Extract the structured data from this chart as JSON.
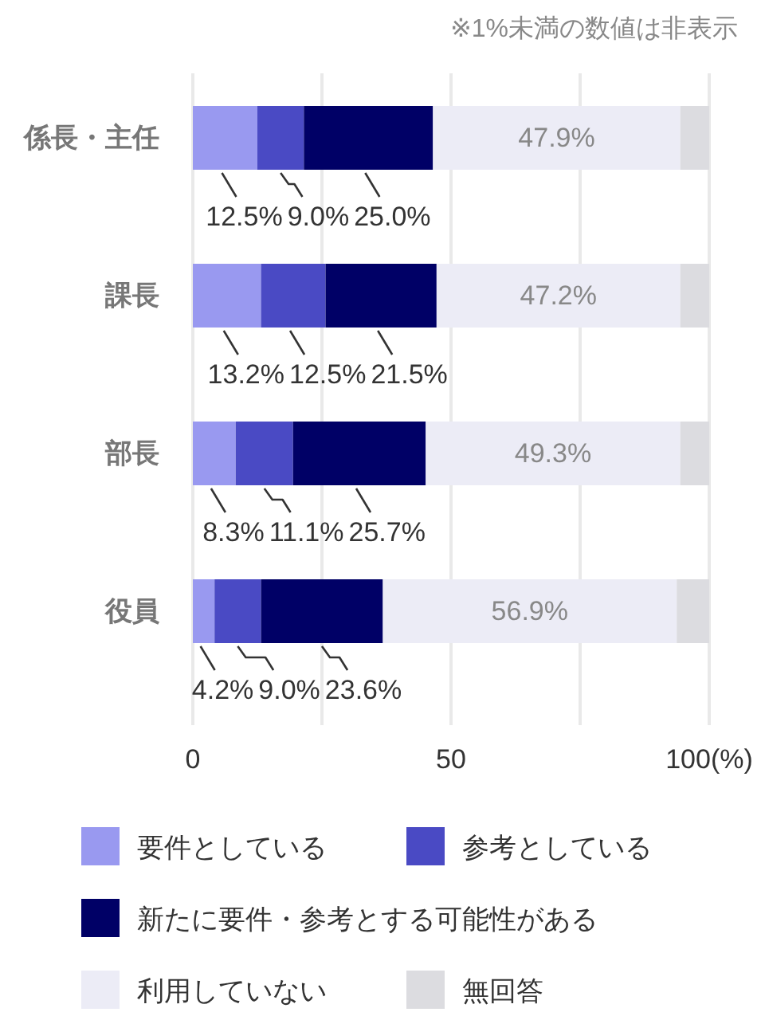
{
  "chart_data": {
    "type": "bar",
    "orientation": "horizontal",
    "stacked": true,
    "categories": [
      "係長・主任",
      "課長",
      "部長",
      "役員"
    ],
    "series": [
      {
        "name": "要件としている",
        "color": "#9999f0",
        "values": [
          12.5,
          13.2,
          8.3,
          4.2
        ],
        "value_labels": [
          "12.5%",
          "13.2%",
          "8.3%",
          "4.2%"
        ]
      },
      {
        "name": "参考としている",
        "color": "#4a4ac4",
        "values": [
          9.0,
          12.5,
          11.1,
          9.0
        ],
        "value_labels": [
          "9.0%",
          "12.5%",
          "11.1%",
          "9.0%"
        ]
      },
      {
        "name": "新たに要件・参考とする可能性がある",
        "color": "#000066",
        "values": [
          25.0,
          21.5,
          25.7,
          23.6
        ],
        "value_labels": [
          "25.0%",
          "21.5%",
          "25.7%",
          "23.6%"
        ]
      },
      {
        "name": "利用していない",
        "color": "#ececf6",
        "values": [
          47.9,
          47.2,
          49.3,
          56.9
        ],
        "value_labels": [
          "47.9%",
          "47.2%",
          "49.3%",
          "56.9%"
        ]
      },
      {
        "name": "無回答",
        "color": "#dcdce0",
        "values": [
          5.6,
          5.6,
          5.6,
          6.3
        ]
      }
    ],
    "xlim": [
      0,
      100
    ],
    "xticks": [
      0,
      {
        "value": 25,
        "label": null
      },
      50,
      {
        "value": 75,
        "label": null
      },
      {
        "value": 100,
        "label": "100(%)"
      }
    ],
    "grid": "x",
    "legend": "bottom",
    "annotations": [
      "※1%未満の数値は非表示"
    ]
  }
}
